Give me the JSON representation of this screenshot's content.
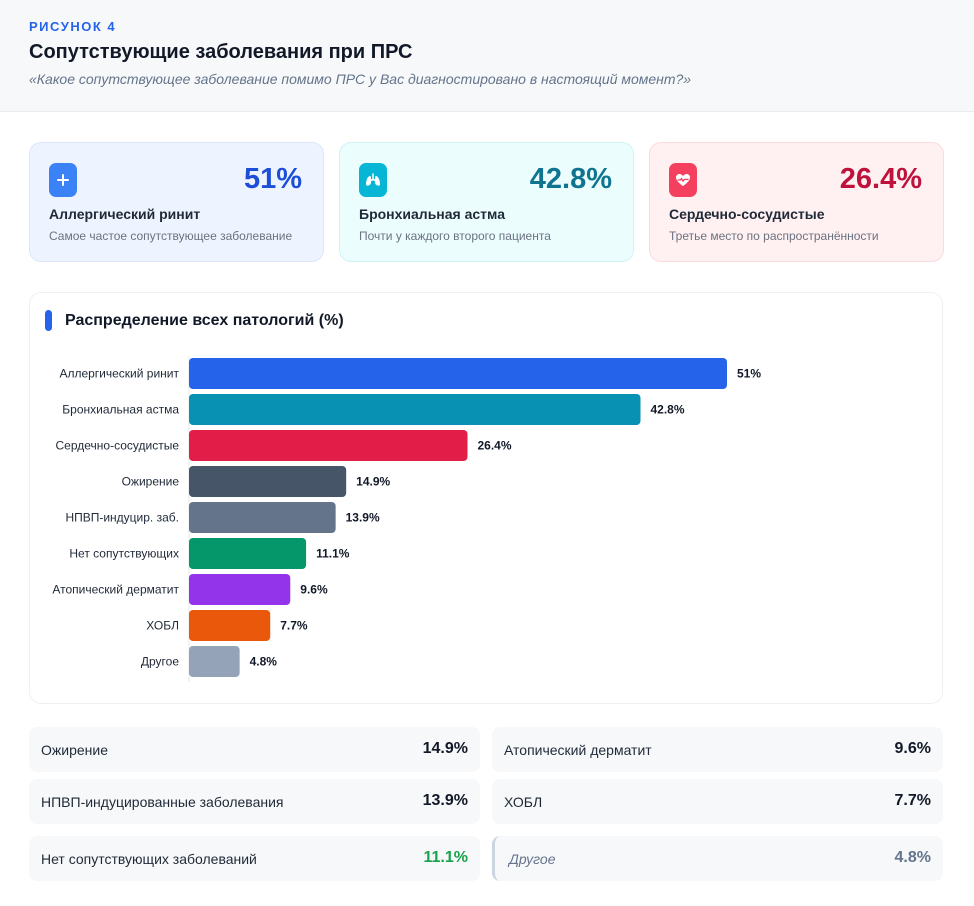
{
  "header": {
    "label": "РИСУНОК 4",
    "title": "Сопутствующие заболевания при ПРС",
    "subtitle": "«Какое сопутствующее заболевание помимо ПРС у Вас диагностировано в настоящий момент?»"
  },
  "cards": [
    {
      "icon": "plus-icon",
      "value": "51%",
      "name": "Аллергический ринит",
      "desc": "Самое частое сопутствующее заболевание",
      "accent": "#1d4ed8",
      "bg": "#eef4ff",
      "border": "#dbe6fb",
      "icon_bg": "#3b82f6"
    },
    {
      "icon": "lungs-icon",
      "value": "42.8%",
      "name": "Бронхиальная астма",
      "desc": "Почти у каждого второго пациента",
      "accent": "#0e7490",
      "bg": "#ebfdfd",
      "border": "#d0f4f6",
      "icon_bg": "#06b6d4"
    },
    {
      "icon": "heart-pulse-icon",
      "value": "26.4%",
      "name": "Сердечно-сосудистые",
      "desc": "Третье место по распространённости",
      "accent": "#be123c",
      "bg": "#fff0f1",
      "border": "#fbdadd",
      "icon_bg": "#f43f5e"
    }
  ],
  "chart_data": {
    "type": "bar",
    "orientation": "horizontal",
    "title": "Распределение всех патологий (%)",
    "categories": [
      "Аллергический ринит",
      "Бронхиальная астма",
      "Сердечно-сосудистые",
      "Ожирение",
      "НПВП-индуцир. заб.",
      "Нет сопутствующих",
      "Атопический дерматит",
      "ХОБЛ",
      "Другое"
    ],
    "values": [
      51,
      42.8,
      26.4,
      14.9,
      13.9,
      11.1,
      9.6,
      7.7,
      4.8
    ],
    "value_labels": [
      "51%",
      "42.8%",
      "26.4%",
      "14.9%",
      "13.9%",
      "11.1%",
      "9.6%",
      "7.7%",
      "4.8%"
    ],
    "colors": [
      "#2563eb",
      "#0891b2",
      "#e11d48",
      "#475569",
      "#64748b",
      "#059669",
      "#9333ea",
      "#ea580c",
      "#94a3b8"
    ],
    "xlim": [
      0,
      51
    ],
    "grid": false,
    "legend": "none"
  },
  "stats": [
    {
      "label": "Ожирение",
      "value": "14.9%",
      "color": "#111827"
    },
    {
      "label": "Атопический дерматит",
      "value": "9.6%",
      "color": "#111827"
    },
    {
      "label": "НПВП-индуцированные заболевания",
      "value": "13.9%",
      "color": "#111827"
    },
    {
      "label": "ХОБЛ",
      "value": "7.7%",
      "color": "#111827"
    },
    {
      "label": "Нет сопутствующих заболеваний",
      "value": "11.1%",
      "color": "#16a34a"
    },
    {
      "label": "Другое",
      "value": "4.8%",
      "color": "#64748b"
    }
  ]
}
